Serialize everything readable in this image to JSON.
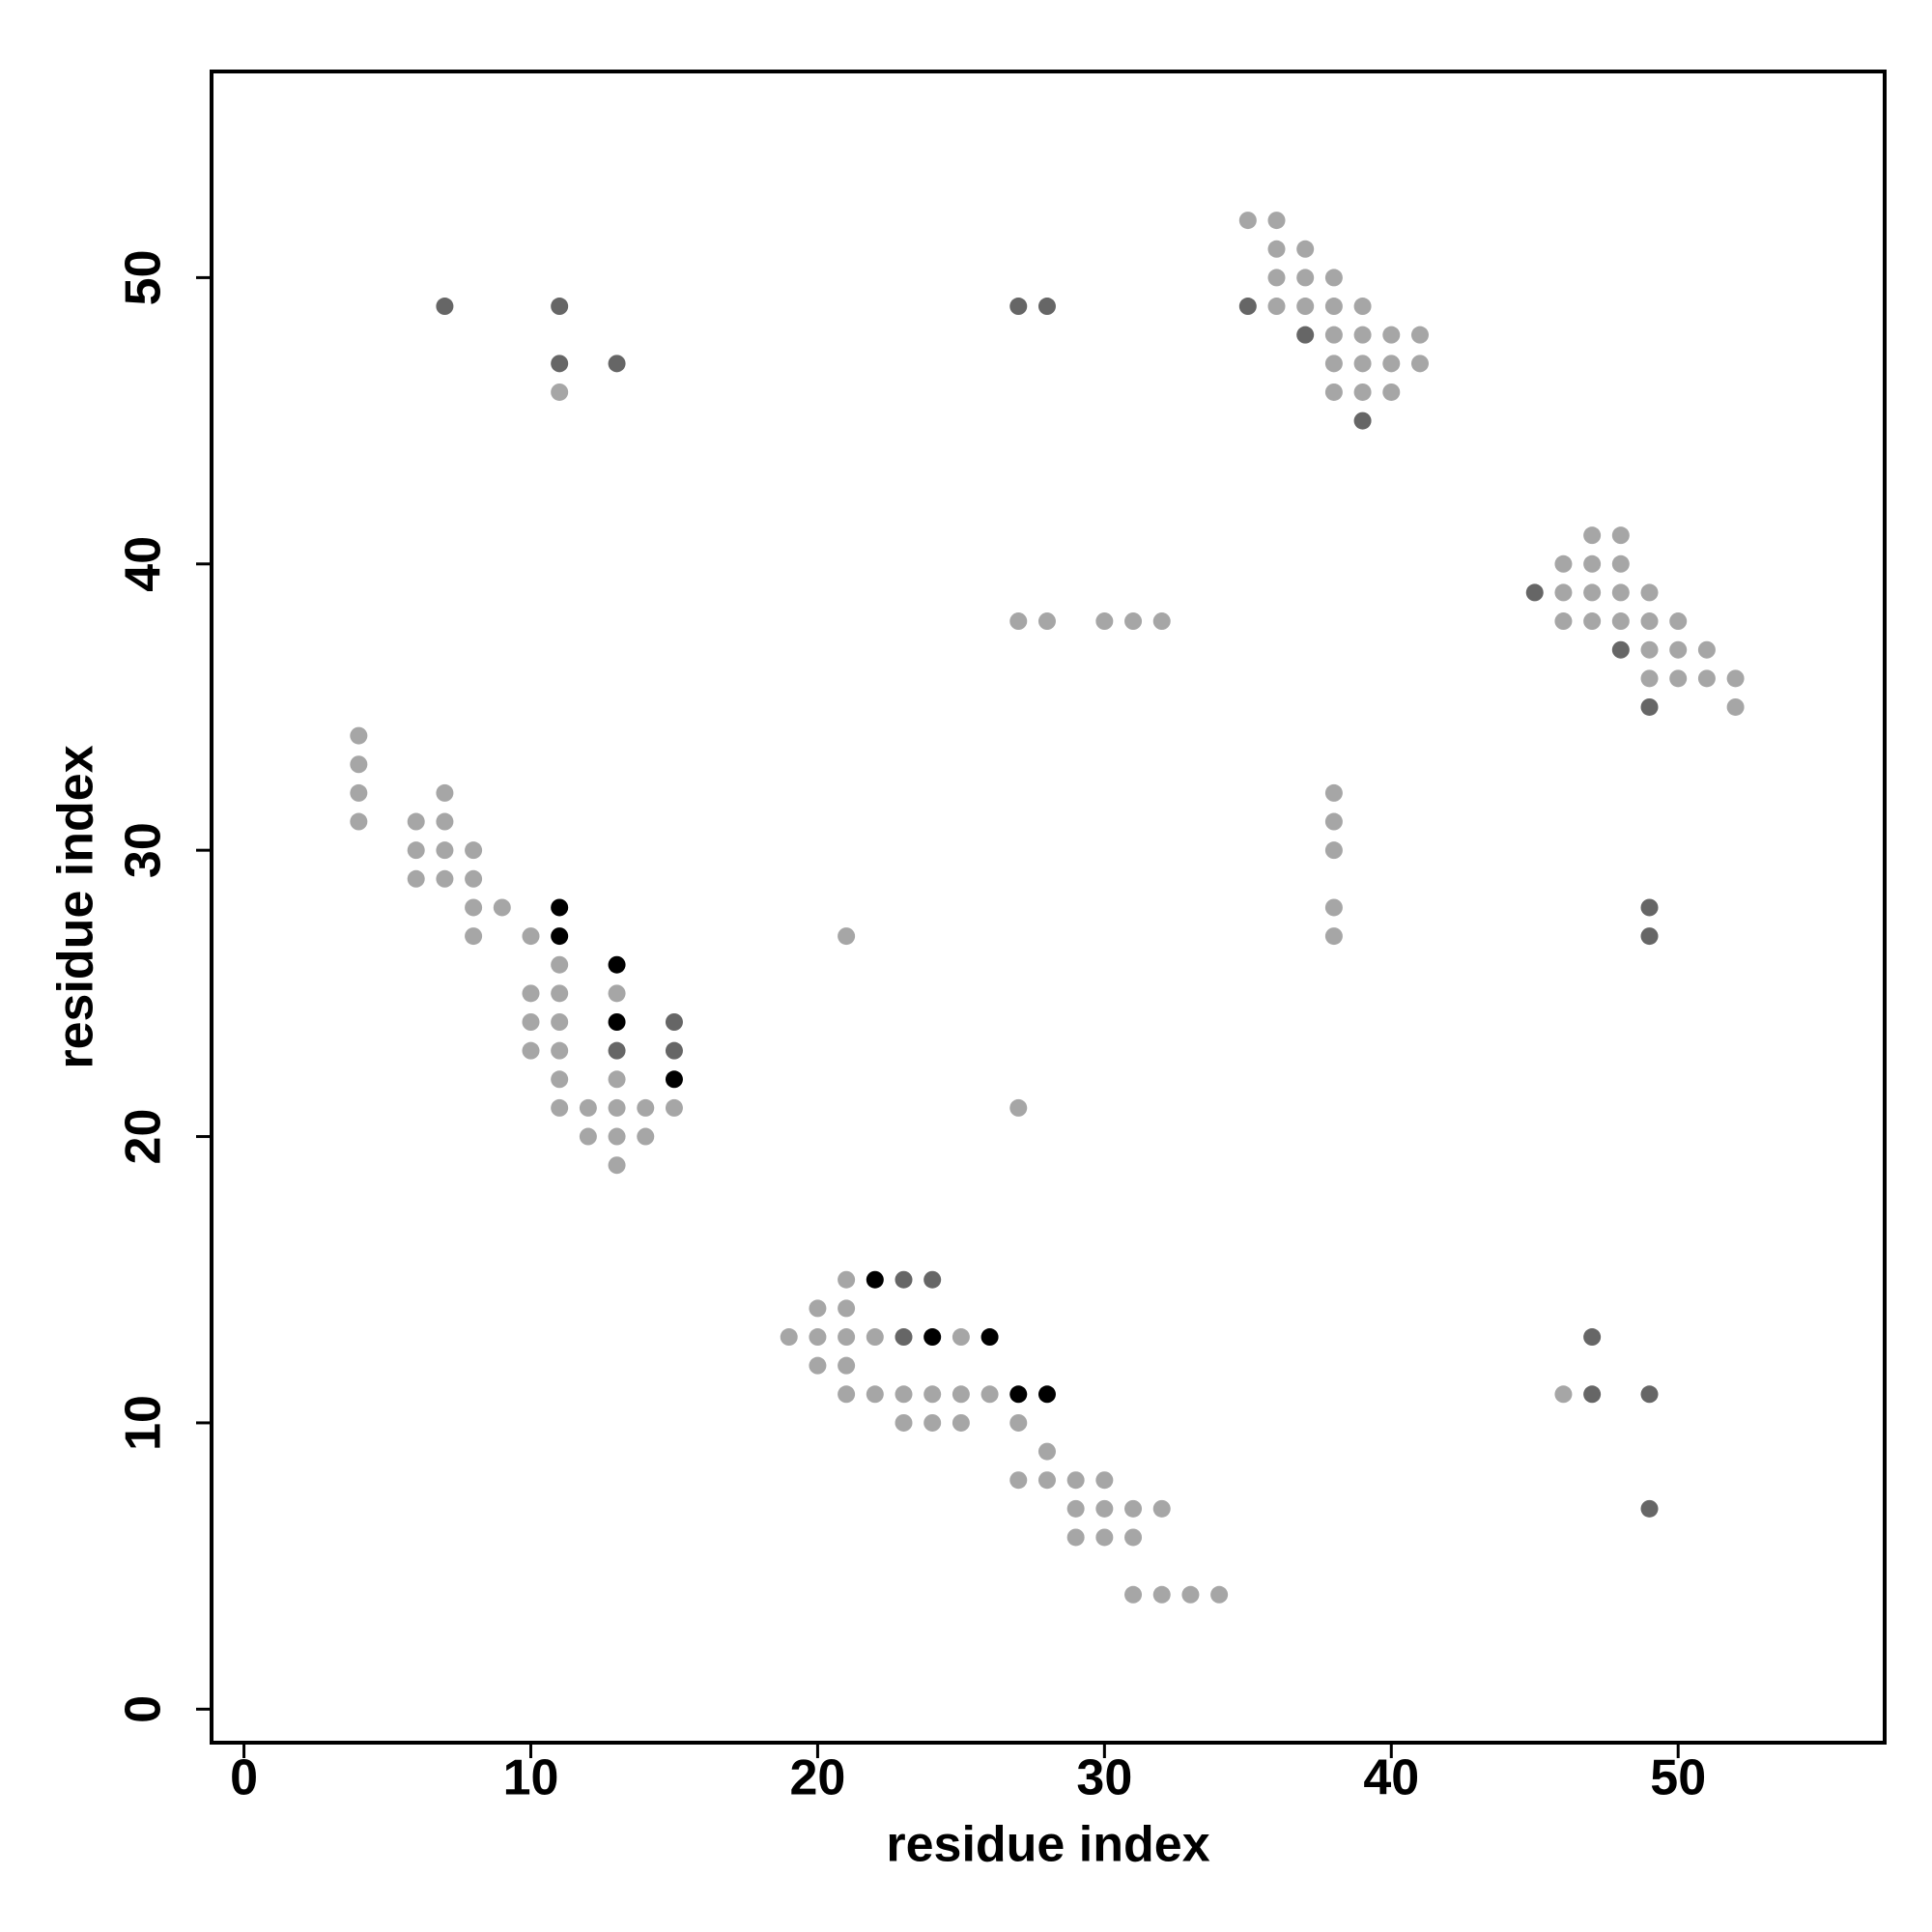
{
  "chart_data": {
    "type": "scatter",
    "xlabel": "residue index",
    "ylabel": "residue index",
    "xlim": [
      -1.13,
      57.2
    ],
    "ylim": [
      -1.17,
      57.2
    ],
    "xticks": [
      0,
      10,
      20,
      30,
      40,
      50
    ],
    "yticks": [
      0,
      10,
      20,
      30,
      40,
      50
    ],
    "series": [
      {
        "color": "#a6a6a6",
        "x": [
          11,
          35,
          36,
          36,
          37,
          36,
          37,
          38,
          36,
          37,
          38,
          39,
          38,
          39,
          40,
          41,
          38,
          39,
          40,
          41,
          38,
          39,
          40,
          47,
          48,
          46,
          47,
          48,
          46,
          47,
          48,
          49,
          46,
          47,
          48,
          49,
          50,
          49,
          50,
          51,
          49,
          50,
          51,
          52,
          52,
          27,
          28,
          30,
          31,
          32,
          38,
          38,
          38,
          38,
          38,
          21,
          27,
          4,
          4,
          4,
          4,
          6,
          7,
          7,
          6,
          7,
          8,
          6,
          7,
          8,
          8,
          9,
          8,
          10,
          11,
          10,
          11,
          13,
          10,
          11,
          10,
          11,
          11,
          13,
          11,
          12,
          13,
          14,
          15,
          12,
          13,
          14,
          13,
          21,
          20,
          21,
          19,
          20,
          21,
          22,
          25,
          20,
          21,
          21,
          22,
          23,
          24,
          25,
          26,
          23,
          24,
          25,
          27,
          28,
          27,
          28,
          29,
          30,
          29,
          30,
          31,
          32,
          29,
          30,
          31,
          31,
          32,
          33,
          34,
          46
        ],
        "y": [
          46,
          52,
          52,
          51,
          51,
          50,
          50,
          50,
          49,
          49,
          49,
          49,
          48,
          48,
          48,
          48,
          47,
          47,
          47,
          47,
          46,
          46,
          46,
          41,
          41,
          40,
          40,
          40,
          39,
          39,
          39,
          39,
          38,
          38,
          38,
          38,
          38,
          37,
          37,
          37,
          36,
          36,
          36,
          36,
          35,
          38,
          38,
          38,
          38,
          38,
          32,
          31,
          30,
          28,
          27,
          27,
          21,
          34,
          33,
          32,
          31,
          31,
          32,
          31,
          30,
          30,
          30,
          29,
          29,
          29,
          28,
          28,
          27,
          27,
          26,
          25,
          25,
          25,
          24,
          24,
          23,
          23,
          22,
          22,
          21,
          21,
          21,
          21,
          21,
          20,
          20,
          20,
          19,
          15,
          14,
          14,
          13,
          13,
          13,
          13,
          13,
          12,
          12,
          11,
          11,
          11,
          11,
          11,
          11,
          10,
          10,
          10,
          10,
          9,
          8,
          8,
          8,
          8,
          7,
          7,
          7,
          7,
          6,
          6,
          6,
          4,
          4,
          4,
          4,
          11
        ]
      },
      {
        "color": "#666666",
        "x": [
          7,
          11,
          11,
          13,
          27,
          28,
          35,
          37,
          39,
          45,
          48,
          49,
          49,
          49,
          15,
          13,
          15,
          23,
          24,
          23,
          47,
          47,
          49,
          49
        ],
        "y": [
          49,
          49,
          47,
          47,
          49,
          49,
          49,
          48,
          45,
          39,
          37,
          35,
          28,
          27,
          24,
          23,
          23,
          15,
          15,
          13,
          13,
          11,
          11,
          7
        ]
      },
      {
        "color": "#000000",
        "x": [
          11,
          11,
          13,
          13,
          15,
          22,
          24,
          26,
          27,
          28
        ],
        "y": [
          28,
          27,
          26,
          24,
          22,
          15,
          13,
          13,
          11,
          11
        ]
      }
    ]
  }
}
